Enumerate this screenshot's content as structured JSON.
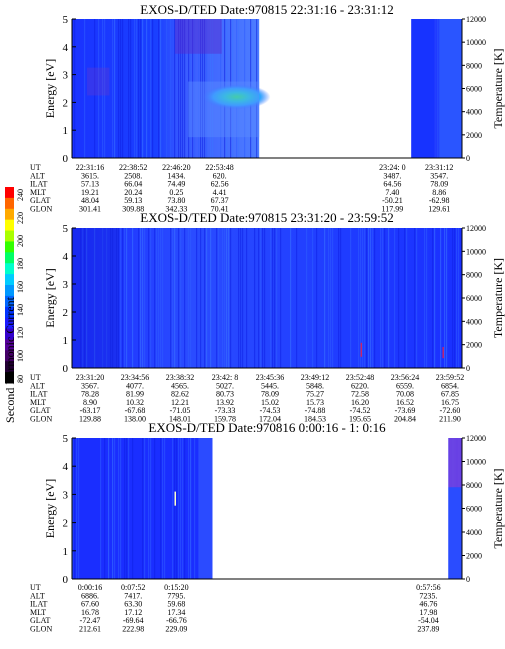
{
  "colorbar": {
    "label": "Second Harmonic Current",
    "ticks": [
      "240",
      "220",
      "200",
      "180",
      "160",
      "140",
      "120",
      "100",
      "80"
    ]
  },
  "chart_data": [
    {
      "type": "heatmap",
      "title": "EXOS-D/TED   Date:970815  22:31:16 - 23:31:12",
      "ylabel": "Energy [eV]",
      "ylim": [
        0,
        5
      ],
      "yticks": [
        "0",
        "1",
        "2",
        "3",
        "4",
        "5"
      ],
      "y2label": "Temperature [K]",
      "y2lim": [
        0,
        12000
      ],
      "y2ticks": [
        "0",
        "2000",
        "4000",
        "6000",
        "8000",
        "10000",
        "12000"
      ],
      "segments": [
        {
          "from": 0.0,
          "to": 0.48,
          "style": "dense"
        },
        {
          "from": 0.87,
          "to": 1.0,
          "style": "sparse"
        }
      ],
      "rows": [
        {
          "label": "UT",
          "values": [
            "22:31:16",
            "22:38:52",
            "22:46:20",
            "22:53:48",
            "",
            "23:24: 0",
            "23:31:12"
          ]
        },
        {
          "label": "ALT",
          "values": [
            "3615.",
            "2508.",
            "1434.",
            "620.",
            "",
            "3487.",
            "3547."
          ]
        },
        {
          "label": "ILAT",
          "values": [
            "57.13",
            "66.04",
            "74.49",
            "62.56",
            "",
            "64.56",
            "78.09"
          ]
        },
        {
          "label": "MLT",
          "values": [
            "19.21",
            "20.24",
            "0.25",
            "4.41",
            "",
            "7.40",
            "8.86"
          ]
        },
        {
          "label": "GLAT",
          "values": [
            "48.04",
            "59.13",
            "73.80",
            "67.37",
            "",
            "-50.21",
            "-62.98"
          ]
        },
        {
          "label": "GLON",
          "values": [
            "301.41",
            "309.88",
            "342.33",
            "70.41",
            "",
            "117.99",
            "129.61"
          ]
        }
      ]
    },
    {
      "type": "heatmap",
      "title": "EXOS-D/TED   Date:970815  23:31:20 - 23:59:52",
      "ylabel": "Energy [eV]",
      "ylim": [
        0,
        5
      ],
      "yticks": [
        "0",
        "1",
        "2",
        "3",
        "4",
        "5"
      ],
      "y2label": "Temperature [K]",
      "y2lim": [
        0,
        12000
      ],
      "y2ticks": [
        "0",
        "2000",
        "4000",
        "6000",
        "8000",
        "10000",
        "12000"
      ],
      "segments": [
        {
          "from": 0.0,
          "to": 1.0,
          "style": "full"
        }
      ],
      "rows": [
        {
          "label": "UT",
          "values": [
            "23:31:20",
            "23:34:56",
            "23:38:32",
            "23:42: 8",
            "23:45:36",
            "23:49:12",
            "23:52:48",
            "23:56:24",
            "23:59:52"
          ]
        },
        {
          "label": "ALT",
          "values": [
            "3567.",
            "4077.",
            "4565.",
            "5027.",
            "5445.",
            "5848.",
            "6220.",
            "6559.",
            "6854."
          ]
        },
        {
          "label": "ILAT",
          "values": [
            "78.28",
            "81.99",
            "82.62",
            "80.73",
            "78.09",
            "75.27",
            "72.58",
            "70.08",
            "67.85"
          ]
        },
        {
          "label": "MLT",
          "values": [
            "8.90",
            "10.32",
            "12.21",
            "13.92",
            "15.02",
            "15.73",
            "16.20",
            "16.52",
            "16.75"
          ]
        },
        {
          "label": "GLAT",
          "values": [
            "-63.17",
            "-67.68",
            "-71.05",
            "-73.33",
            "-74.53",
            "-74.88",
            "-74.52",
            "-73.69",
            "-72.60"
          ]
        },
        {
          "label": "GLON",
          "values": [
            "129.88",
            "138.00",
            "148.01",
            "159.78",
            "172.04",
            "184.53",
            "195.65",
            "204.84",
            "211.90"
          ]
        }
      ]
    },
    {
      "type": "heatmap",
      "title": "EXOS-D/TED   Date:970816  0:00:16 - 1: 0:16",
      "ylabel": "Energy [eV]",
      "ylim": [
        0,
        5
      ],
      "yticks": [
        "0",
        "1",
        "2",
        "3",
        "4",
        "5"
      ],
      "y2label": "Temperature [K]",
      "y2lim": [
        0,
        12000
      ],
      "y2ticks": [
        "0",
        "2000",
        "4000",
        "6000",
        "8000",
        "10000",
        "12000"
      ],
      "segments": [
        {
          "from": 0.0,
          "to": 0.36,
          "style": "sparse"
        },
        {
          "from": 0.965,
          "to": 1.0,
          "style": "edge"
        }
      ],
      "rows": [
        {
          "label": "UT",
          "values": [
            "0:00:16",
            "0:07:52",
            "0:15:20",
            "",
            "0:57:56"
          ]
        },
        {
          "label": "ALT",
          "values": [
            "6886.",
            "7417.",
            "7795.",
            "",
            "7235."
          ]
        },
        {
          "label": "ILAT",
          "values": [
            "67.60",
            "63.30",
            "59.68",
            "",
            "46.76"
          ]
        },
        {
          "label": "MLT",
          "values": [
            "16.78",
            "17.12",
            "17.34",
            "",
            "17.98"
          ]
        },
        {
          "label": "GLAT",
          "values": [
            "-72.47",
            "-69.64",
            "-66.76",
            "",
            "-54.04"
          ]
        },
        {
          "label": "GLON",
          "values": [
            "212.61",
            "222.98",
            "229.09",
            "",
            "237.89"
          ]
        }
      ]
    }
  ]
}
